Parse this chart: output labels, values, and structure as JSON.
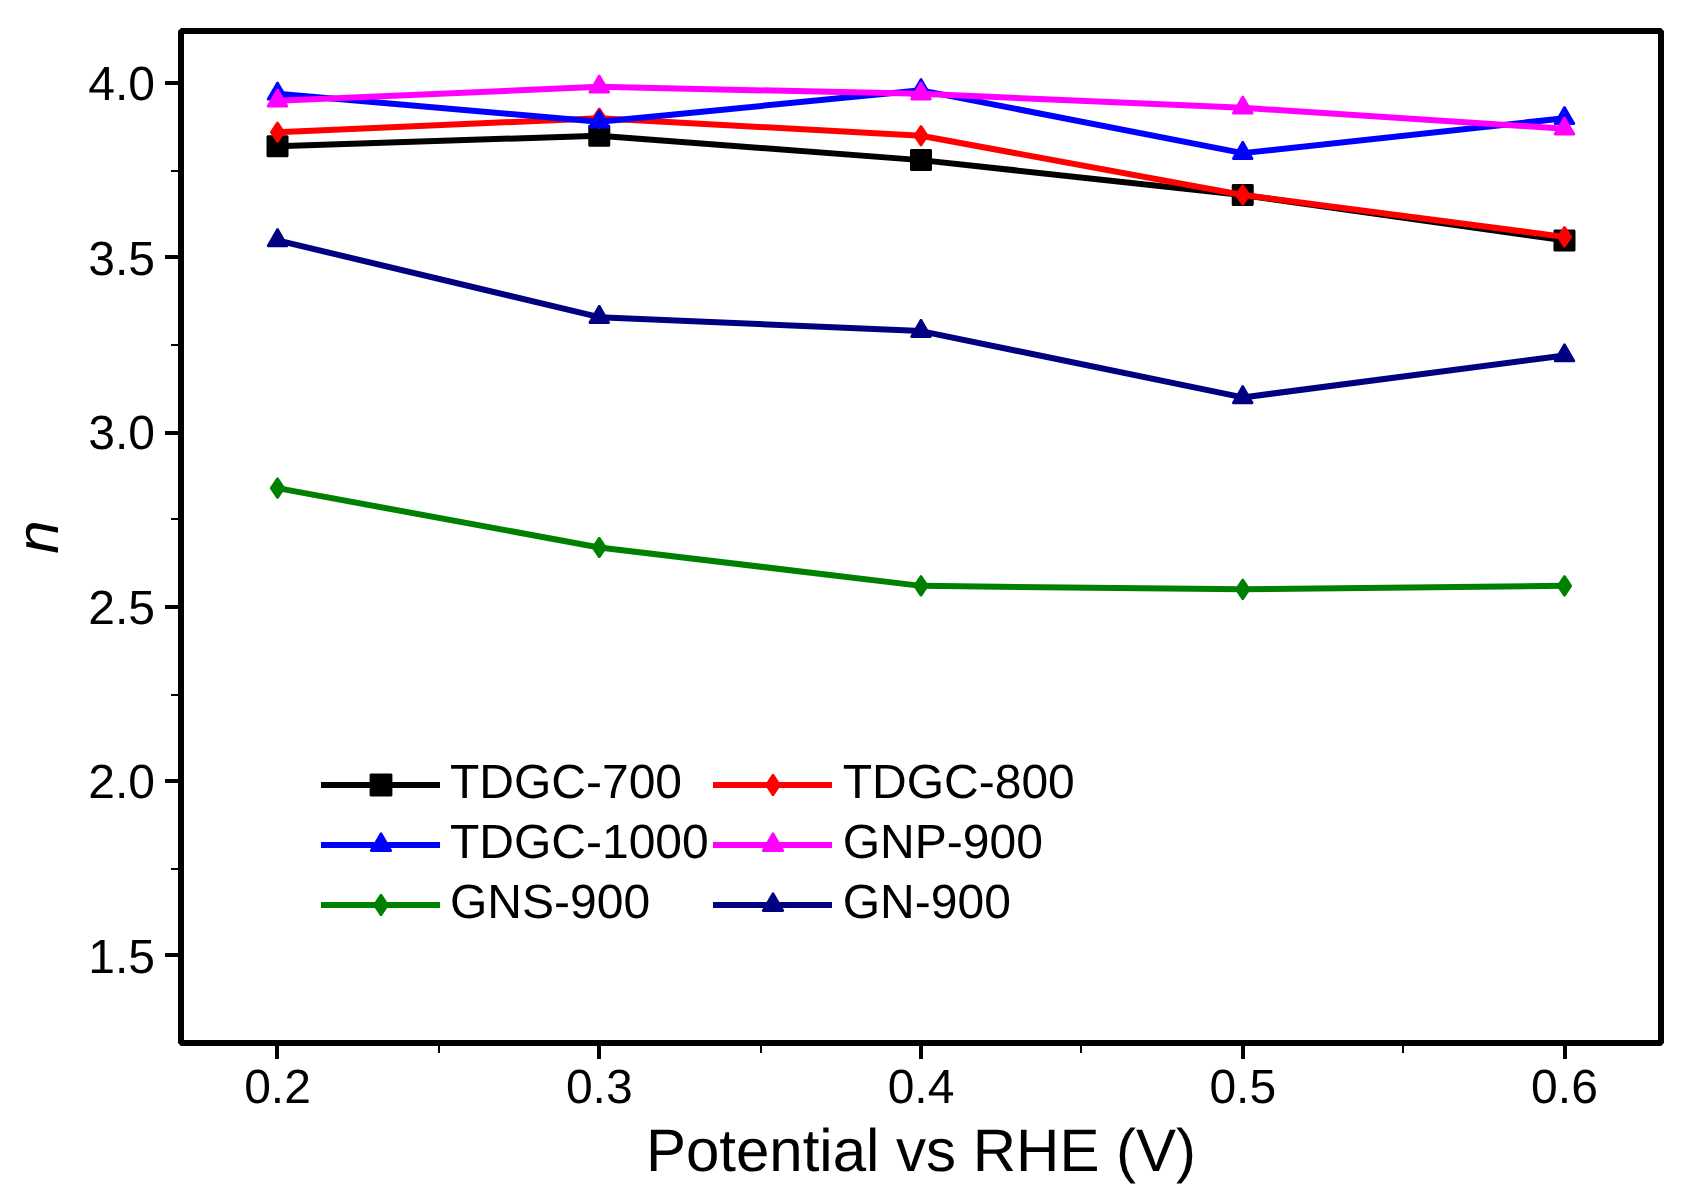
{
  "chart_data": {
    "type": "line",
    "xlabel": "Potential vs RHE (V)",
    "ylabel": "n",
    "x": [
      0.2,
      0.3,
      0.4,
      0.5,
      0.6
    ],
    "xlim": [
      0.17,
      0.63
    ],
    "ylim": [
      1.25,
      4.15
    ],
    "xticks": [
      0.2,
      0.3,
      0.4,
      0.5,
      0.6
    ],
    "yticks": [
      {
        "value": 1.5,
        "label": "1.5"
      },
      {
        "value": 2.0,
        "label": "2.0"
      },
      {
        "value": 2.5,
        "label": "2.5"
      },
      {
        "value": 3.0,
        "label": "3.0"
      },
      {
        "value": 3.5,
        "label": "3.5"
      },
      {
        "value": 4.0,
        "label": "4.0"
      }
    ],
    "grid": false,
    "legend": "bottom",
    "line_style": "solid",
    "series": [
      {
        "name": "TDGC-700",
        "color": "#000000",
        "marker": "square",
        "values": [
          3.82,
          3.85,
          3.78,
          3.68,
          3.55
        ]
      },
      {
        "name": "TDGC-800",
        "color": "#ff0000",
        "marker": "diamond",
        "values": [
          3.86,
          3.9,
          3.85,
          3.68,
          3.56
        ]
      },
      {
        "name": "TDGC-1000",
        "color": "#0000ff",
        "marker": "triangle",
        "values": [
          3.97,
          3.89,
          3.98,
          3.8,
          3.9
        ]
      },
      {
        "name": "GNP-900",
        "color": "#ff00ff",
        "marker": "triangle",
        "values": [
          3.95,
          3.99,
          3.97,
          3.93,
          3.87
        ]
      },
      {
        "name": "GNS-900",
        "color": "#008000",
        "marker": "diamond",
        "values": [
          2.84,
          2.67,
          2.56,
          2.55,
          2.56
        ]
      },
      {
        "name": "GN-900",
        "color": "#000080",
        "marker": "triangle",
        "values": [
          3.55,
          3.33,
          3.29,
          3.1,
          3.22
        ]
      }
    ]
  }
}
